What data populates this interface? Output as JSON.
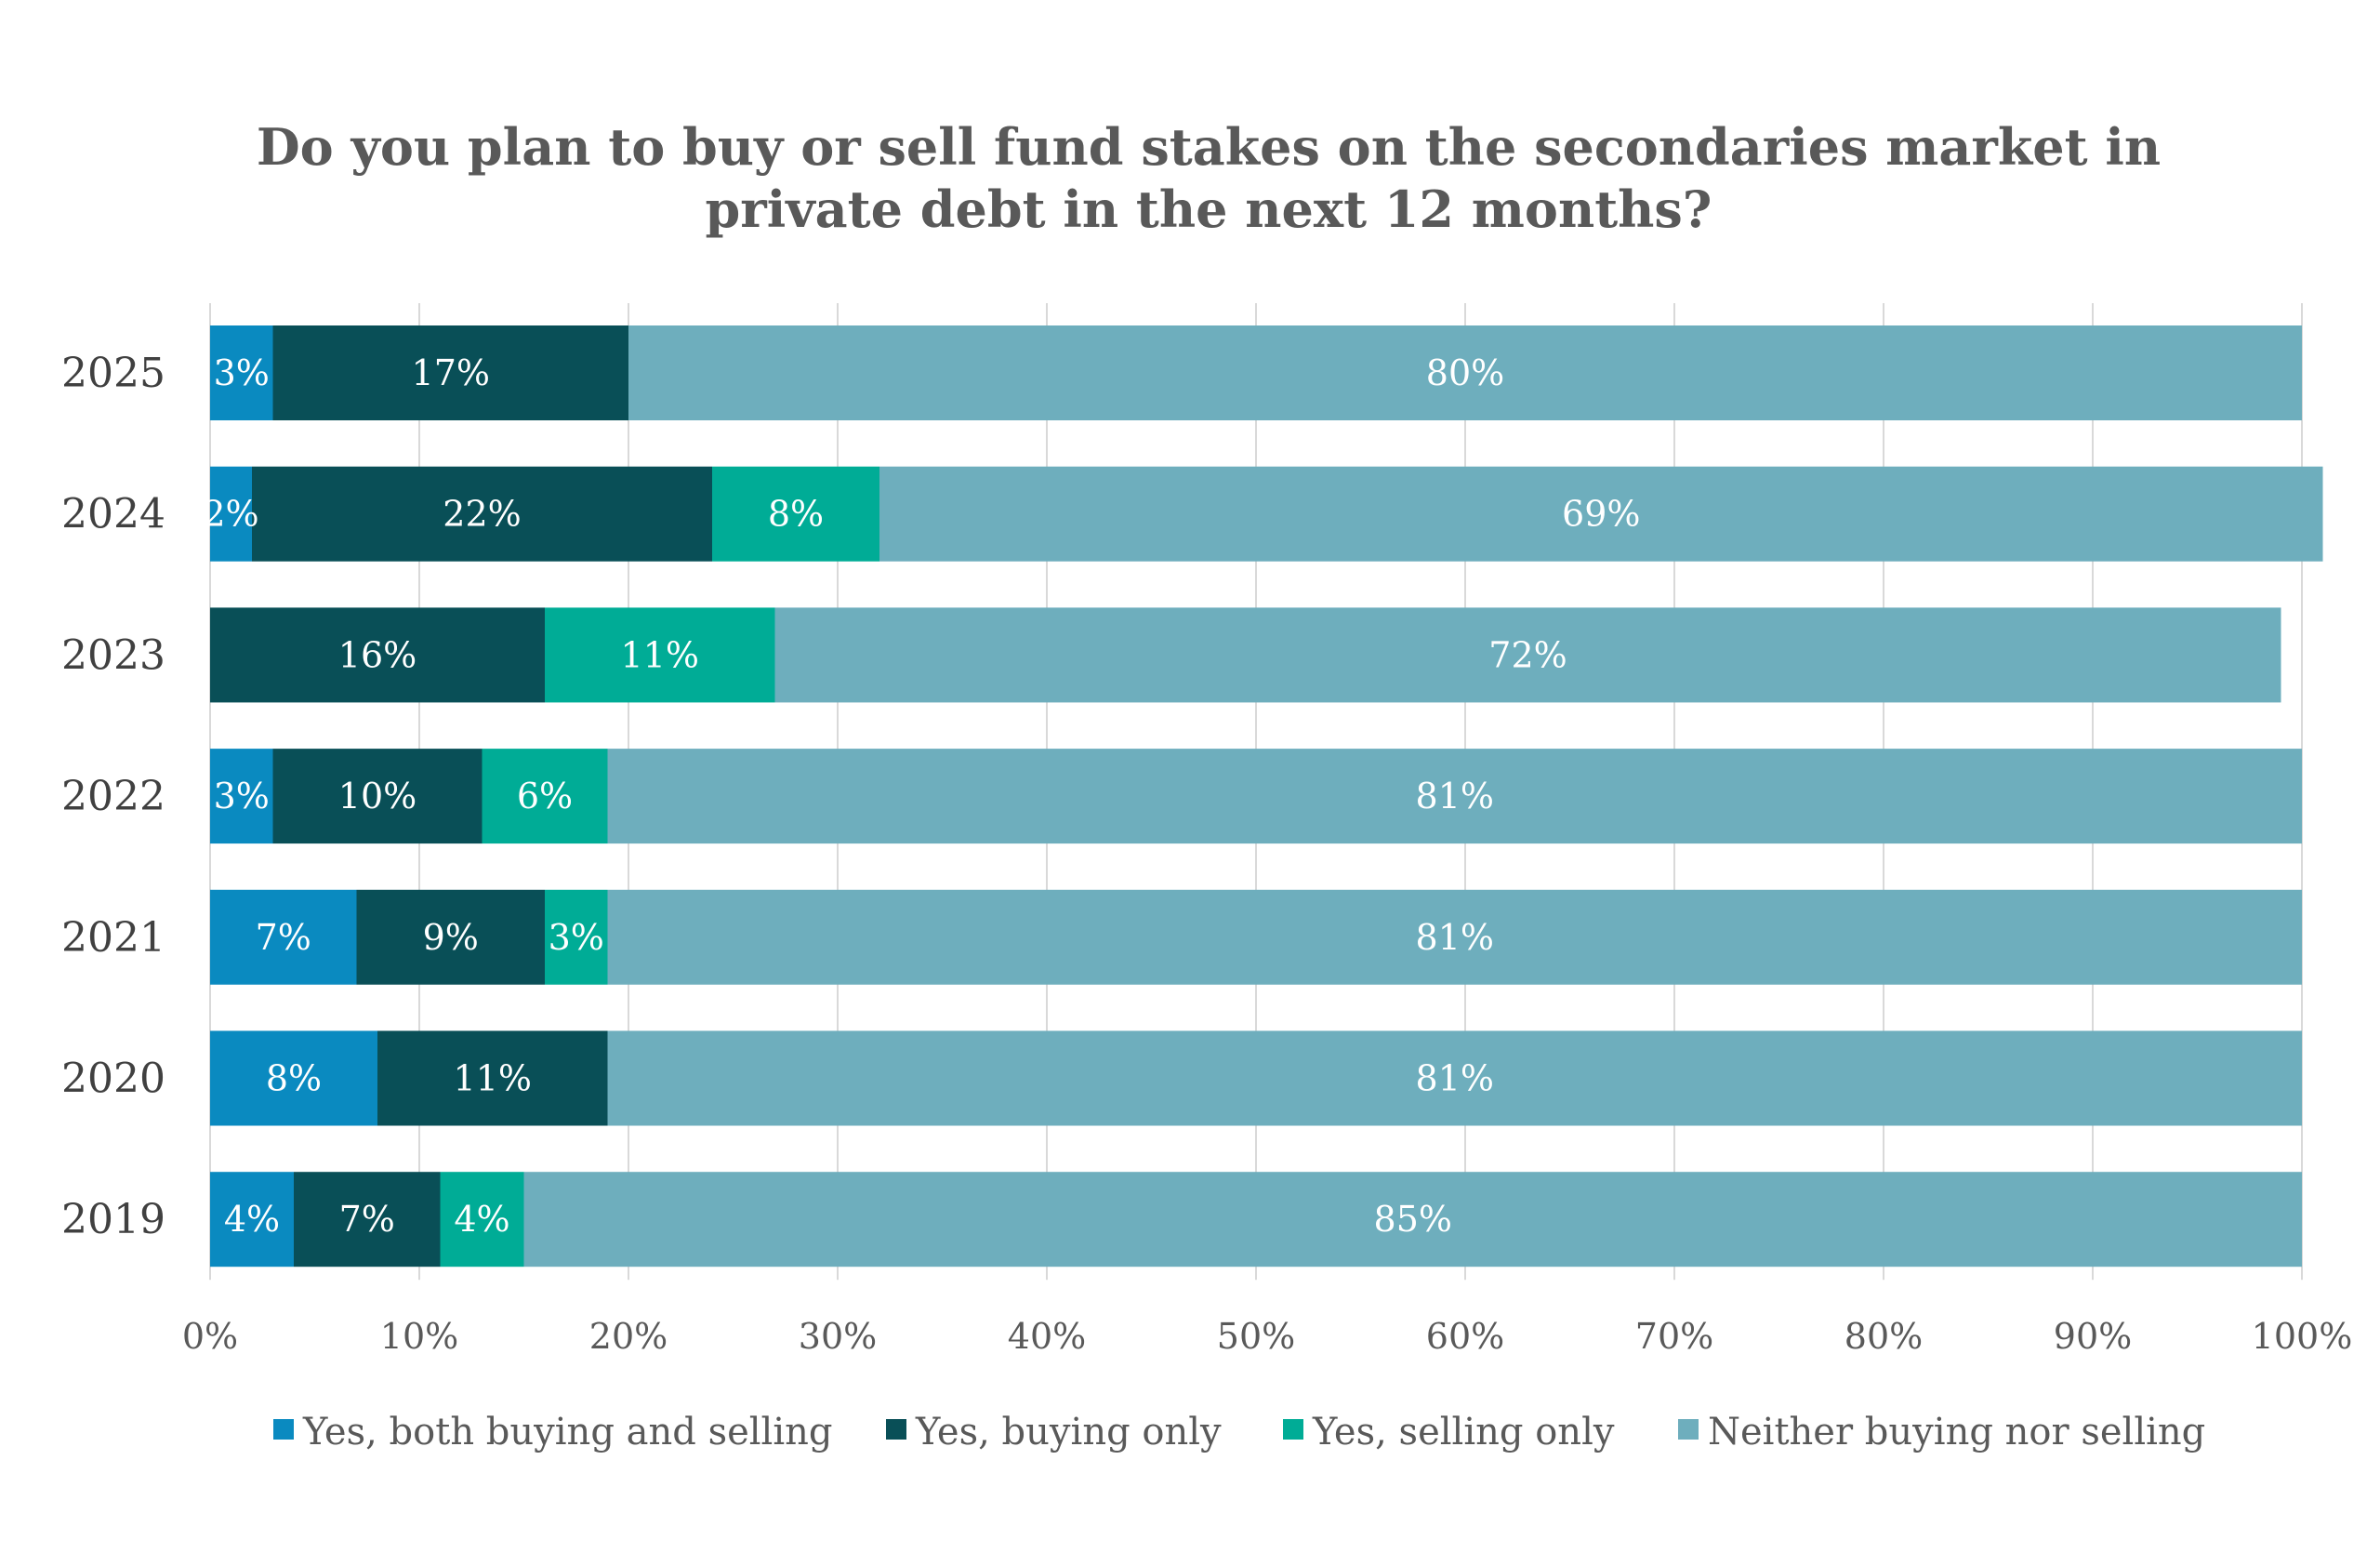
{
  "chart_data": {
    "type": "bar",
    "orientation": "horizontal",
    "stacked": true,
    "title_lines": [
      "Do you plan to buy or sell fund stakes on the secondaries market in",
      "private debt in the next 12 months?"
    ],
    "categories": [
      "2025",
      "2024",
      "2023",
      "2022",
      "2021",
      "2020",
      "2019"
    ],
    "series": [
      {
        "name": "Yes, both buying and selling",
        "color": "#0a8ac0",
        "values": [
          3,
          2,
          0,
          3,
          7,
          8,
          4
        ],
        "labels": [
          "3%",
          "2%",
          "",
          "3%",
          "7%",
          "8%",
          "4%"
        ]
      },
      {
        "name": "Yes, buying only",
        "color": "#094f57",
        "values": [
          17,
          22,
          16,
          10,
          9,
          11,
          7
        ],
        "labels": [
          "17%",
          "22%",
          "16%",
          "10%",
          "9%",
          "11%",
          "7%"
        ]
      },
      {
        "name": "Yes, selling only",
        "color": "#00ac96",
        "values": [
          0,
          8,
          11,
          6,
          3,
          0,
          4
        ],
        "labels": [
          "",
          "8%",
          "11%",
          "6%",
          "3%",
          "",
          "4%"
        ]
      },
      {
        "name": "Neither buying nor selling",
        "color": "#6eaebd",
        "values": [
          80,
          69,
          72,
          81,
          81,
          81,
          85
        ],
        "labels": [
          "80%",
          "69%",
          "72%",
          "81%",
          "81%",
          "81%",
          "85%"
        ]
      }
    ],
    "xlim": [
      0,
      100
    ],
    "x_ticks": [
      "0%",
      "10%",
      "20%",
      "30%",
      "40%",
      "50%",
      "60%",
      "70%",
      "80%",
      "90%",
      "100%"
    ],
    "grid": "vertical",
    "legend_position": "bottom"
  }
}
